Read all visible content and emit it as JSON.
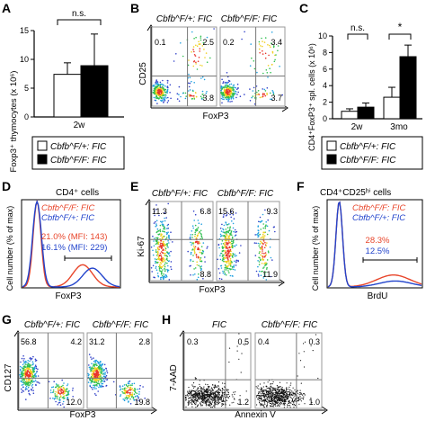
{
  "panels": {
    "A": {
      "letter": "A",
      "ylabel": "Foxp3⁺ thymocytes (x 10⁶)",
      "xtick": "2w",
      "sig": "n.s.",
      "yticks": [
        "0",
        "5",
        "10",
        "15"
      ]
    },
    "B": {
      "letter": "B",
      "title_left": "Cbfb^F/+: FIC",
      "title_right": "Cbfb^F/F: FIC",
      "ylabel": "CD25",
      "xlabel": "FoxP3",
      "left_q": {
        "ul": "0.1",
        "ur": "2.5",
        "lr": "3.8"
      },
      "right_q": {
        "ul": "0.2",
        "ur": "3.4",
        "lr": "3.7"
      }
    },
    "C": {
      "letter": "C",
      "ylabel": "CD4⁺FoxP3⁺ spl. cells (x 10⁶)",
      "xticks": [
        "2w",
        "3mo"
      ],
      "sig1": "n.s.",
      "sig2": "*",
      "yticks": [
        "0",
        "2",
        "4",
        "6",
        "8",
        "10"
      ]
    },
    "D": {
      "letter": "D",
      "title": "CD4⁺ cells",
      "legend1": "Cbfb^F/F: FIC",
      "legend2": "Cbfb^F/+: FIC",
      "pct1": "21.0% (MFI: 143)",
      "pct2": "16.1% (MFI: 229)",
      "ylabel": "Cell number (% of max)",
      "xlabel": "FoxP3"
    },
    "E": {
      "letter": "E",
      "title_left": "Cbfb^F/+: FIC",
      "title_right": "Cbfb^F/F: FIC",
      "ylabel": "Ki-67",
      "xlabel": "FoxP3",
      "left_q": {
        "ul": "11.3",
        "ur": "6.8",
        "lr": "8.8"
      },
      "right_q": {
        "ul": "15.6",
        "ur": "9.3",
        "lr": "11.9"
      }
    },
    "F": {
      "letter": "F",
      "title": "CD4⁺CD25ʰⁱ cells",
      "legend1": "Cbfb^F/F: FIC",
      "legend2": "Cbfb^F/+: FIC",
      "pct1": "28.3%",
      "pct2": "12.5%",
      "ylabel": "Cell number (% of max)",
      "xlabel": "BrdU"
    },
    "G": {
      "letter": "G",
      "title_left": "Cbfb^F/+: FIC",
      "title_right": "Cbfb^F/F: FIC",
      "ylabel": "CD127",
      "xlabel": "FoxP3",
      "left_q": {
        "ul": "56.8",
        "ur": "4.2",
        "lr": "12.0"
      },
      "right_q": {
        "ul": "31.2",
        "ur": "2.8",
        "lr": "19.8"
      }
    },
    "H": {
      "letter": "H",
      "title_left": "FIC",
      "title_right": "Cbfb^F/F: FIC",
      "ylabel": "7-AAD",
      "xlabel": "Annexin V",
      "left_q": {
        "ul": "0.3",
        "ur": "0.5",
        "lr": "1.2"
      },
      "right_q": {
        "ul": "0.4",
        "ur": "0.3",
        "lr": "1.0"
      }
    }
  },
  "legend_AC": {
    "white": "Cbfb^F/+: FIC",
    "black": "Cbfb^F/F: FIC"
  },
  "colors": {
    "red": "#e8452a",
    "blue": "#2244cc",
    "ko": "#000000",
    "wt": "#ffffff"
  },
  "chart_data": [
    {
      "panel": "A",
      "type": "bar",
      "categories": [
        "2w"
      ],
      "ylim": [
        0,
        15
      ],
      "ylabel": "Foxp3⁺ thymocytes (x 10⁶)",
      "series": [
        {
          "name": "Cbfb^F/+: FIC",
          "values": [
            7.4
          ]
        },
        {
          "name": "Cbfb^F/F: FIC",
          "values": [
            8.9
          ]
        }
      ],
      "errors": [
        {
          "values": [
            2.0
          ]
        },
        {
          "values": [
            5.5
          ]
        }
      ]
    },
    {
      "panel": "C",
      "type": "bar",
      "categories": [
        "2w",
        "3mo"
      ],
      "ylim": [
        0,
        10
      ],
      "ylabel": "CD4⁺FoxP3⁺ spl. cells (x 10⁶)",
      "series": [
        {
          "name": "Cbfb^F/+: FIC",
          "values": [
            0.9,
            2.6
          ]
        },
        {
          "name": "Cbfb^F/F: FIC",
          "values": [
            1.4,
            7.5
          ]
        }
      ],
      "errors": [
        {
          "values": [
            0.3,
            1.2
          ]
        },
        {
          "values": [
            0.5,
            1.4
          ]
        }
      ]
    }
  ]
}
